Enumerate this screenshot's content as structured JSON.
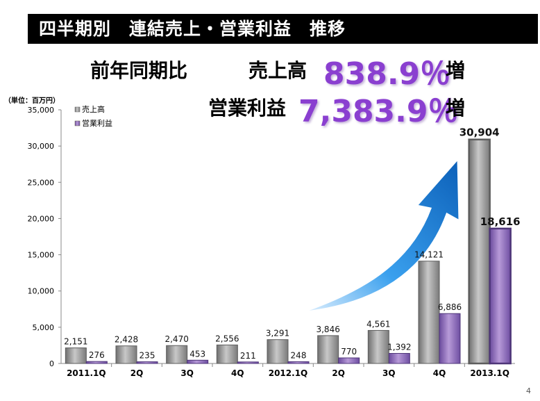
{
  "title": "四半期別　連結売上・営業利益　推移",
  "headline": {
    "prefix": "前年同期比",
    "sales_label": "売上高",
    "sales_value": "838.9％",
    "sales_suffix": "増",
    "op_label": "営業利益",
    "op_value": "7,383.9％",
    "op_suffix": "増"
  },
  "unit_note": "（単位：百万円）",
  "page_number": "4",
  "colors": {
    "sales": "#9a9a9a",
    "op_profit": "#8f6bbf",
    "accent_number": "#8a3fd0",
    "arrow": "#1a73c8"
  },
  "chart_data": {
    "type": "bar",
    "categories": [
      "2011.1Q",
      "2Q",
      "3Q",
      "4Q",
      "2012.1Q",
      "2Q",
      "3Q",
      "4Q",
      "2013.1Q"
    ],
    "series": [
      {
        "name": "売上高",
        "values": [
          2151,
          2428,
          2470,
          2556,
          3291,
          3846,
          4561,
          14121,
          30904
        ],
        "labels": [
          "2,151",
          "2,428",
          "2,470",
          "2,556",
          "3,291",
          "3,846",
          "4,561",
          "14,121",
          "30,904"
        ]
      },
      {
        "name": "営業利益",
        "values": [
          276,
          235,
          453,
          211,
          248,
          770,
          1392,
          6886,
          18616
        ],
        "labels": [
          "276",
          "235",
          "453",
          "211",
          "248",
          "770",
          "1,392",
          "6,886",
          "18,616"
        ]
      }
    ],
    "ylim": [
      0,
      35000
    ],
    "yticks": [
      0,
      5000,
      10000,
      15000,
      20000,
      25000,
      30000,
      35000
    ],
    "ytick_labels": [
      "0",
      "5,000",
      "10,000",
      "15,000",
      "20,000",
      "25,000",
      "30,000",
      "35,000"
    ],
    "legend_position": "top-left",
    "grid": false
  }
}
